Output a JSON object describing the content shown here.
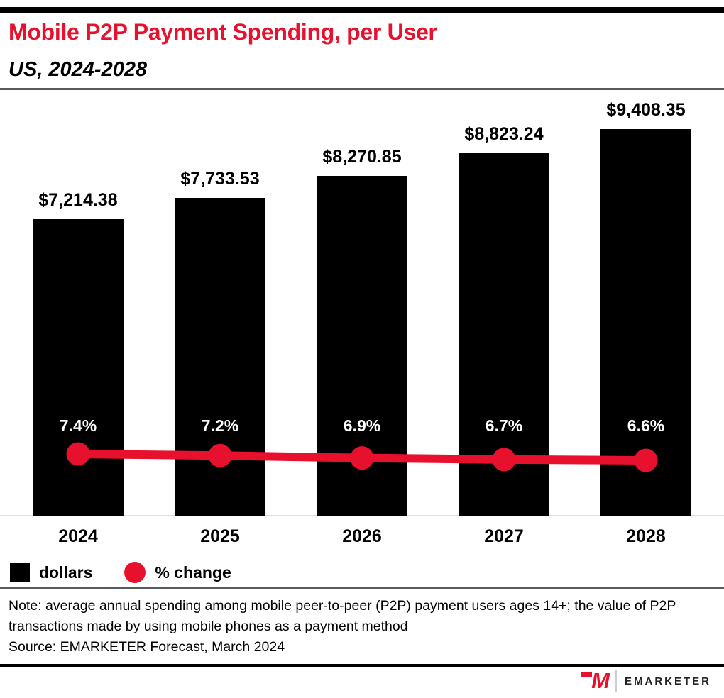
{
  "header": {
    "title": "Mobile P2P Payment Spending, per User",
    "subtitle": "US, 2024-2028"
  },
  "chart_data": {
    "type": "bar",
    "title": "Mobile P2P Payment Spending, per User",
    "subtitle": "US, 2024-2028",
    "categories": [
      "2024",
      "2025",
      "2026",
      "2027",
      "2028"
    ],
    "series": [
      {
        "name": "dollars",
        "type": "bar",
        "values": [
          7214.38,
          7733.53,
          8270.85,
          8823.24,
          9408.35
        ],
        "labels": [
          "$7,214.38",
          "$7,733.53",
          "$8,270.85",
          "$8,823.24",
          "$9,408.35"
        ],
        "color": "#000000"
      },
      {
        "name": "% change",
        "type": "line",
        "values": [
          7.4,
          7.2,
          6.9,
          6.7,
          6.6
        ],
        "labels": [
          "7.4%",
          "7.2%",
          "6.9%",
          "6.7%",
          "6.6%"
        ],
        "color": "#E8112D"
      }
    ],
    "xlabel": "",
    "ylabel": "",
    "grid": false,
    "legend_position": "bottom-left"
  },
  "legend": {
    "items": [
      {
        "label": "dollars",
        "swatch": "square",
        "color": "#000000"
      },
      {
        "label": "% change",
        "swatch": "circle",
        "color": "#E8112D"
      }
    ]
  },
  "footnote": {
    "note": "Note: average annual spending among mobile peer-to-peer (P2P) payment users ages 14+; the value of P2P transactions made by using mobile phones as a payment method",
    "source": "Source: EMARKETER Forecast, March 2024"
  },
  "footer": {
    "logo_m": "M",
    "brand": "EMARKETER"
  },
  "colors": {
    "accent": "#E8112D",
    "bar": "#000000",
    "axis_line": "#D9DEEE",
    "divider": "#58595B"
  }
}
